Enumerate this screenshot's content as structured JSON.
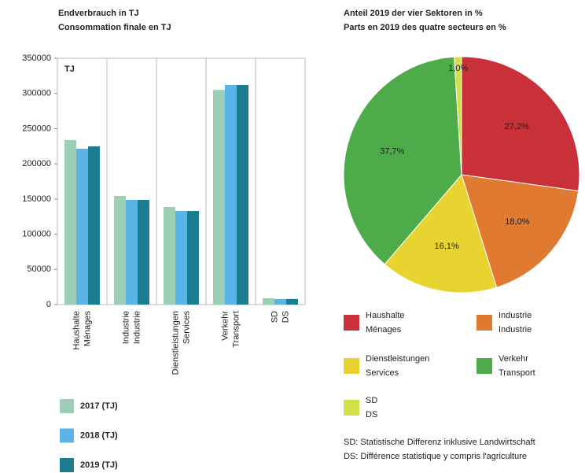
{
  "chart_data": [
    {
      "type": "bar",
      "title": [
        "Endverbrauch in TJ",
        "Consommation finale en TJ"
      ],
      "unit_label": "TJ",
      "categories": [
        [
          "Haushalte",
          "Ménages"
        ],
        [
          "Industrie",
          "Industrie"
        ],
        [
          "Dienstleistungen",
          "Services"
        ],
        [
          "Verkehr",
          "Transport"
        ],
        [
          "SD",
          "DS"
        ]
      ],
      "series": [
        {
          "name": "2017 (TJ)",
          "color": "#9ccfb5",
          "values": [
            233700,
            154300,
            138700,
            305000,
            9000
          ]
        },
        {
          "name": "2018 (TJ)",
          "color": "#5ab4e6",
          "values": [
            221400,
            148700,
            133000,
            312000,
            8000
          ]
        },
        {
          "name": "2019 (TJ)",
          "color": "#1b7d8f",
          "values": [
            224800,
            148700,
            133000,
            312000,
            8000
          ]
        }
      ],
      "ylim": [
        0,
        350000
      ],
      "yticks": [
        0,
        50000,
        100000,
        150000,
        200000,
        250000,
        300000,
        350000
      ],
      "legend": "bottom"
    },
    {
      "type": "pie",
      "title": [
        "Anteil 2019 der vier Sektoren in %",
        "Parts en 2019 des quatre secteurs en %"
      ],
      "labels": [
        [
          "Haushalte",
          "Ménages"
        ],
        [
          "Industrie",
          "Industrie"
        ],
        [
          "Dienstleistungen",
          "Services"
        ],
        [
          "Verkehr",
          "Transport"
        ],
        [
          "SD",
          "DS"
        ]
      ],
      "values": [
        27.2,
        18.0,
        16.1,
        37.7,
        1.0
      ],
      "value_labels": [
        "27,2%",
        "18,0%",
        "16,1%",
        "37,7%",
        "1,0%"
      ],
      "colors": [
        "#c8313a",
        "#e07a30",
        "#e8d430",
        "#4eab4a",
        "#d4e04a"
      ],
      "footnotes": [
        "SD:  Statistische Differenz inklusive Landwirtschaft",
        "DS:  Différence statistique y compris l'agriculture"
      ]
    }
  ]
}
